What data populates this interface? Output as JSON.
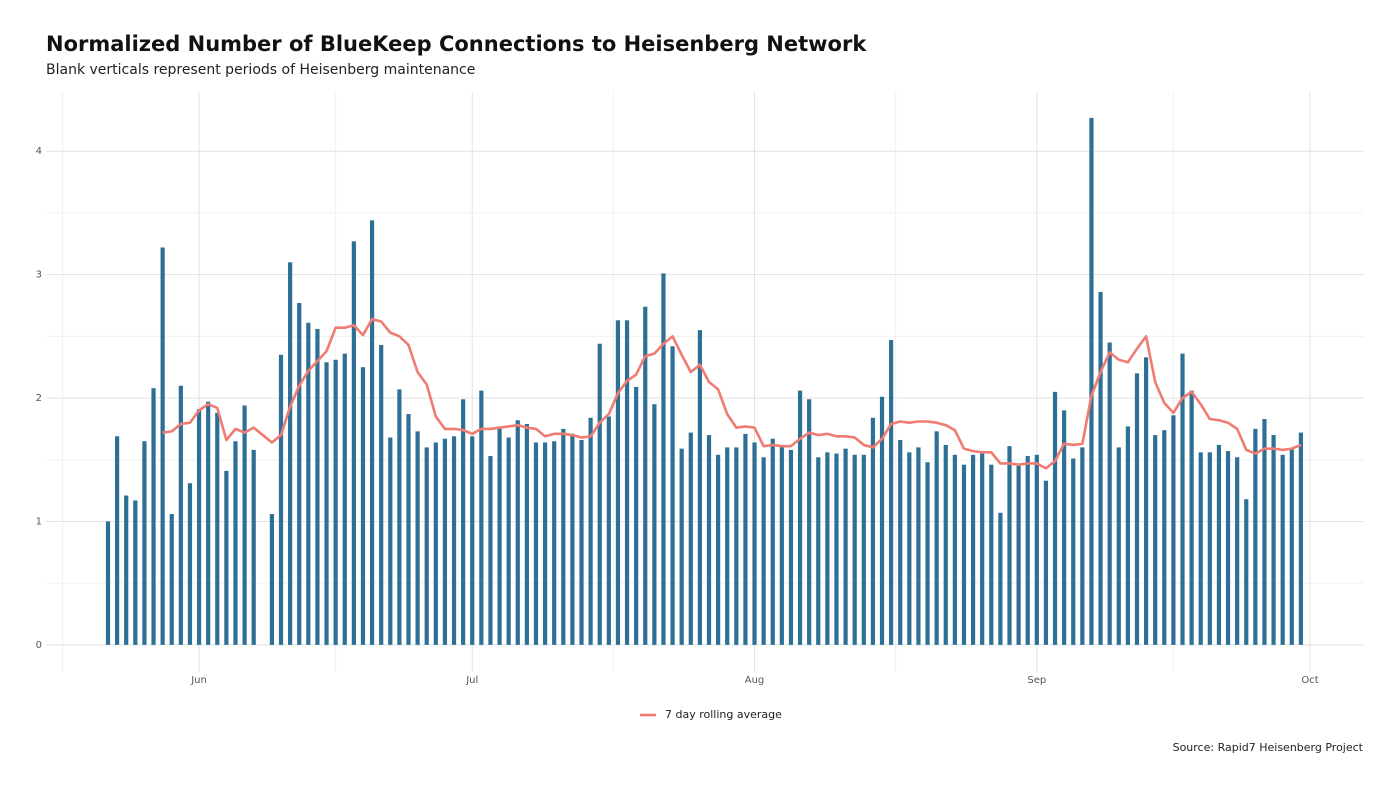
{
  "chart_data": {
    "type": "bar",
    "title": "Normalized Number of BlueKeep Connections to Heisenberg Network",
    "subtitle": "Blank verticals represent periods of Heisenberg maintenance",
    "source": "Source: Rapid7 Heisenberg Project",
    "categories": [
      null,
      null,
      null,
      null,
      null,
      null,
      null,
      null,
      null,
      null,
      "Jun",
      null,
      null,
      null,
      null,
      null,
      null,
      null,
      null,
      null,
      null,
      null,
      null,
      null,
      null,
      null,
      null,
      null,
      null,
      null,
      null,
      null,
      null,
      null,
      null,
      null,
      null,
      null,
      null,
      null,
      "Jul",
      null,
      null,
      null,
      null,
      null,
      null,
      null,
      null,
      null,
      null,
      null,
      null,
      null,
      null,
      null,
      null,
      null,
      null,
      null,
      null,
      null,
      null,
      null,
      null,
      null,
      null,
      null,
      null,
      null,
      null,
      "Aug",
      null,
      null,
      null,
      null,
      null,
      null,
      null,
      null,
      null,
      null,
      null,
      null,
      null,
      null,
      null,
      null,
      null,
      null,
      null,
      null,
      null,
      null,
      null,
      null,
      null,
      null,
      null,
      null,
      null,
      null,
      "Sep",
      null,
      null,
      null,
      null,
      null,
      null,
      null,
      null,
      null,
      null,
      null,
      null,
      null,
      null,
      null,
      null,
      null,
      null,
      null,
      null,
      null,
      null,
      null,
      null,
      null,
      null,
      null,
      null,
      null,
      "Oct"
    ],
    "series": [
      {
        "type": "bar",
        "color": "#2e6f96",
        "values": [
          1.0,
          1.69,
          1.21,
          1.17,
          1.65,
          2.08,
          3.22,
          1.06,
          2.1,
          1.31,
          1.91,
          1.97,
          1.88,
          1.41,
          1.65,
          1.94,
          1.58,
          null,
          1.06,
          2.35,
          3.1,
          2.77,
          2.61,
          2.56,
          2.29,
          2.31,
          2.36,
          3.27,
          2.25,
          3.44,
          2.43,
          1.68,
          2.07,
          1.87,
          1.73,
          1.6,
          1.64,
          1.67,
          1.69,
          1.99,
          1.69,
          2.06,
          1.53,
          1.77,
          1.68,
          1.82,
          1.79,
          1.64,
          1.64,
          1.65,
          1.75,
          1.71,
          1.66,
          1.84,
          2.44,
          1.85,
          2.63,
          2.63,
          2.09,
          2.74,
          1.95,
          3.01,
          2.42,
          1.59,
          1.72,
          2.55,
          1.7,
          1.54,
          1.6,
          1.6,
          1.71,
          1.64,
          1.52,
          1.67,
          1.61,
          1.58,
          2.06,
          1.99,
          1.52,
          1.56,
          1.55,
          1.59,
          1.54,
          1.54,
          1.84,
          2.01,
          2.47,
          1.66,
          1.56,
          1.6,
          1.48,
          1.73,
          1.62,
          1.54,
          1.46,
          1.54,
          1.55,
          1.46,
          1.07,
          1.61,
          1.45,
          1.53,
          1.54,
          1.33,
          2.05,
          1.9,
          1.51,
          1.6,
          4.27,
          2.86,
          2.45,
          1.6,
          1.77,
          2.2,
          2.33,
          1.7,
          1.74,
          1.86,
          2.36,
          2.06,
          1.56,
          1.56,
          1.62,
          1.57,
          1.52,
          1.18,
          1.75,
          1.83,
          1.7,
          1.54,
          1.59,
          1.72,
          null
        ]
      },
      {
        "type": "line",
        "name": "7 day rolling average",
        "color": "#f07b72",
        "values": [
          null,
          null,
          null,
          null,
          null,
          null,
          1.72,
          1.73,
          1.79,
          1.8,
          1.9,
          1.95,
          1.92,
          1.66,
          1.75,
          1.72,
          1.76,
          1.7,
          1.64,
          1.7,
          1.93,
          2.1,
          2.22,
          2.3,
          2.38,
          2.57,
          2.57,
          2.59,
          2.51,
          2.64,
          2.62,
          2.53,
          2.5,
          2.43,
          2.21,
          2.11,
          1.85,
          1.75,
          1.75,
          1.74,
          1.71,
          1.75,
          1.75,
          1.76,
          1.77,
          1.78,
          1.76,
          1.75,
          1.69,
          1.71,
          1.71,
          1.7,
          1.68,
          1.69,
          1.8,
          1.87,
          2.04,
          2.14,
          2.19,
          2.34,
          2.36,
          2.44,
          2.5,
          2.35,
          2.21,
          2.27,
          2.13,
          2.07,
          1.87,
          1.76,
          1.77,
          1.76,
          1.61,
          1.62,
          1.61,
          1.61,
          1.67,
          1.72,
          1.7,
          1.71,
          1.69,
          1.69,
          1.68,
          1.62,
          1.6,
          1.67,
          1.79,
          1.81,
          1.8,
          1.81,
          1.81,
          1.8,
          1.78,
          1.74,
          1.59,
          1.57,
          1.56,
          1.56,
          1.47,
          1.47,
          1.46,
          1.47,
          1.47,
          1.43,
          1.49,
          1.63,
          1.62,
          1.63,
          2.02,
          2.21,
          2.37,
          2.31,
          2.29,
          2.4,
          2.5,
          2.13,
          1.96,
          1.88,
          2.0,
          2.05,
          1.95,
          1.83,
          1.82,
          1.8,
          1.75,
          1.58,
          1.55,
          1.59,
          1.59,
          1.58,
          1.59,
          1.62,
          null
        ]
      }
    ],
    "ylim": [
      -0.22,
      4.48
    ],
    "yticks": [
      0,
      1,
      2,
      3,
      4
    ],
    "grid": true,
    "legend": "bottom"
  }
}
